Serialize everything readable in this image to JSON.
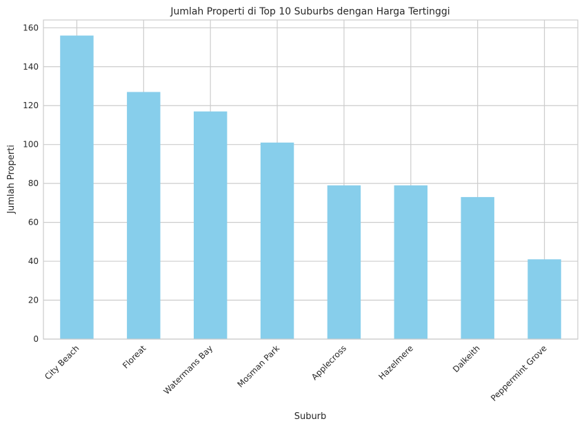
{
  "chart_data": {
    "type": "bar",
    "title": "Jumlah Properti di Top 10 Suburbs dengan Harga Tertinggi",
    "xlabel": "Suburb",
    "ylabel": "Jumlah Properti",
    "categories": [
      "City Beach",
      "Floreat",
      "Watermans Bay",
      "Mosman Park",
      "Applecross",
      "Hazelmere",
      "Dalkeith",
      "Peppermint Grove"
    ],
    "values": [
      156,
      127,
      117,
      101,
      79,
      79,
      73,
      41
    ],
    "ylim": [
      0,
      164
    ],
    "yticks": [
      0,
      20,
      40,
      60,
      80,
      100,
      120,
      140,
      160
    ],
    "ytick_labels": [
      "0",
      "20",
      "40",
      "60",
      "80",
      "100",
      "120",
      "140",
      "160"
    ],
    "bar_color": "#87ceeb",
    "grid": true,
    "xtick_rotation_deg": 45
  }
}
